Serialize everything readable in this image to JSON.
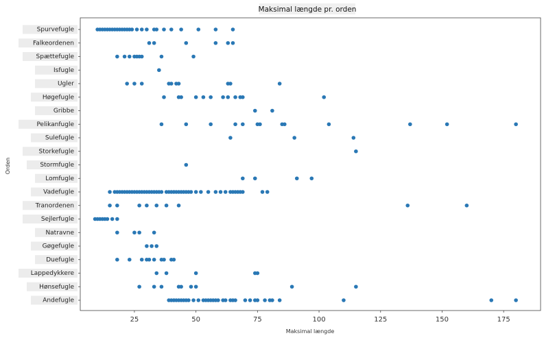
{
  "colors": {
    "marker": "#2a78b5",
    "label_bg": "#ececec"
  },
  "chart_data": {
    "type": "scatter",
    "title": "Maksimal længde pr. orden",
    "xlabel": "Maksimal længde",
    "ylabel": "Orden",
    "xlim": [
      3,
      190
    ],
    "xticks": [
      25,
      50,
      75,
      100,
      125,
      150,
      175
    ],
    "grid": false,
    "categories": [
      "Spurvefugle",
      "Falkeordenen",
      "Spættefugle",
      "Isfugle",
      "Ugler",
      "Høgefugle",
      "Gribbe",
      "Pelikanfugle",
      "Sulefugle",
      "Storkefugle",
      "Stormfugle",
      "Lomfugle",
      "Vadefugle",
      "Tranordenen",
      "Sejlerfugle",
      "Natravne",
      "Gøgefugle",
      "Duefugle",
      "Lappedykkere",
      "Hønsefugle",
      "Andefugle"
    ],
    "series": [
      {
        "category": "Spurvefugle",
        "x": [
          10,
          11,
          12,
          13,
          14,
          15,
          16,
          17,
          18,
          19,
          20,
          21,
          22,
          23,
          24,
          26,
          28,
          30,
          33,
          34,
          37,
          40,
          44,
          51,
          58,
          65
        ]
      },
      {
        "category": "Falkeordenen",
        "x": [
          31,
          33,
          46,
          58,
          63,
          65
        ]
      },
      {
        "category": "Spættefugle",
        "x": [
          18,
          21,
          23,
          25,
          26,
          27,
          28,
          36,
          49
        ]
      },
      {
        "category": "Isfugle",
        "x": [
          35
        ]
      },
      {
        "category": "Ugler",
        "x": [
          22,
          25,
          28,
          39,
          40,
          42,
          43,
          63,
          64,
          84
        ]
      },
      {
        "category": "Høgefugle",
        "x": [
          37,
          43,
          44,
          50,
          53,
          56,
          61,
          63,
          66,
          68,
          69,
          102
        ]
      },
      {
        "category": "Gribbe",
        "x": [
          74,
          81
        ]
      },
      {
        "category": "Pelikanfugle",
        "x": [
          36,
          46,
          56,
          66,
          69,
          75,
          76,
          85,
          86,
          104,
          137,
          152,
          180
        ]
      },
      {
        "category": "Sulefugle",
        "x": [
          64,
          90,
          114
        ]
      },
      {
        "category": "Storkefugle",
        "x": [
          115
        ]
      },
      {
        "category": "Stormfugle",
        "x": [
          46
        ]
      },
      {
        "category": "Lomfugle",
        "x": [
          69,
          74,
          91,
          97
        ]
      },
      {
        "category": "Vadefugle",
        "x": [
          15,
          17,
          18,
          19,
          20,
          21,
          22,
          23,
          24,
          25,
          26,
          27,
          28,
          29,
          30,
          31,
          32,
          33,
          34,
          35,
          36,
          38,
          39,
          40,
          41,
          42,
          43,
          44,
          45,
          46,
          47,
          48,
          50,
          52,
          55,
          58,
          60,
          62,
          64,
          65,
          66,
          67,
          68,
          69,
          77,
          79
        ]
      },
      {
        "category": "Tranordenen",
        "x": [
          15,
          18,
          27,
          30,
          34,
          38,
          43,
          136,
          160
        ]
      },
      {
        "category": "Sejlerfugle",
        "x": [
          9,
          10,
          11,
          12,
          13,
          14,
          16,
          18
        ]
      },
      {
        "category": "Natravne",
        "x": [
          18,
          25,
          27,
          33
        ]
      },
      {
        "category": "Gøgefugle",
        "x": [
          30,
          32,
          34
        ]
      },
      {
        "category": "Duefugle",
        "x": [
          18,
          23,
          28,
          30,
          31,
          33,
          36,
          37,
          40,
          41
        ]
      },
      {
        "category": "Lappedykkere",
        "x": [
          34,
          38,
          50,
          74,
          75
        ]
      },
      {
        "category": "Hønsefugle",
        "x": [
          27,
          33,
          36,
          43,
          44,
          48,
          50,
          89,
          115
        ]
      },
      {
        "category": "Andefugle",
        "x": [
          39,
          40,
          41,
          42,
          43,
          44,
          45,
          46,
          47,
          49,
          51,
          53,
          54,
          55,
          56,
          57,
          58,
          59,
          61,
          62,
          64,
          65,
          66,
          70,
          72,
          74,
          75,
          78,
          80,
          81,
          84,
          110,
          170,
          180
        ]
      }
    ]
  }
}
